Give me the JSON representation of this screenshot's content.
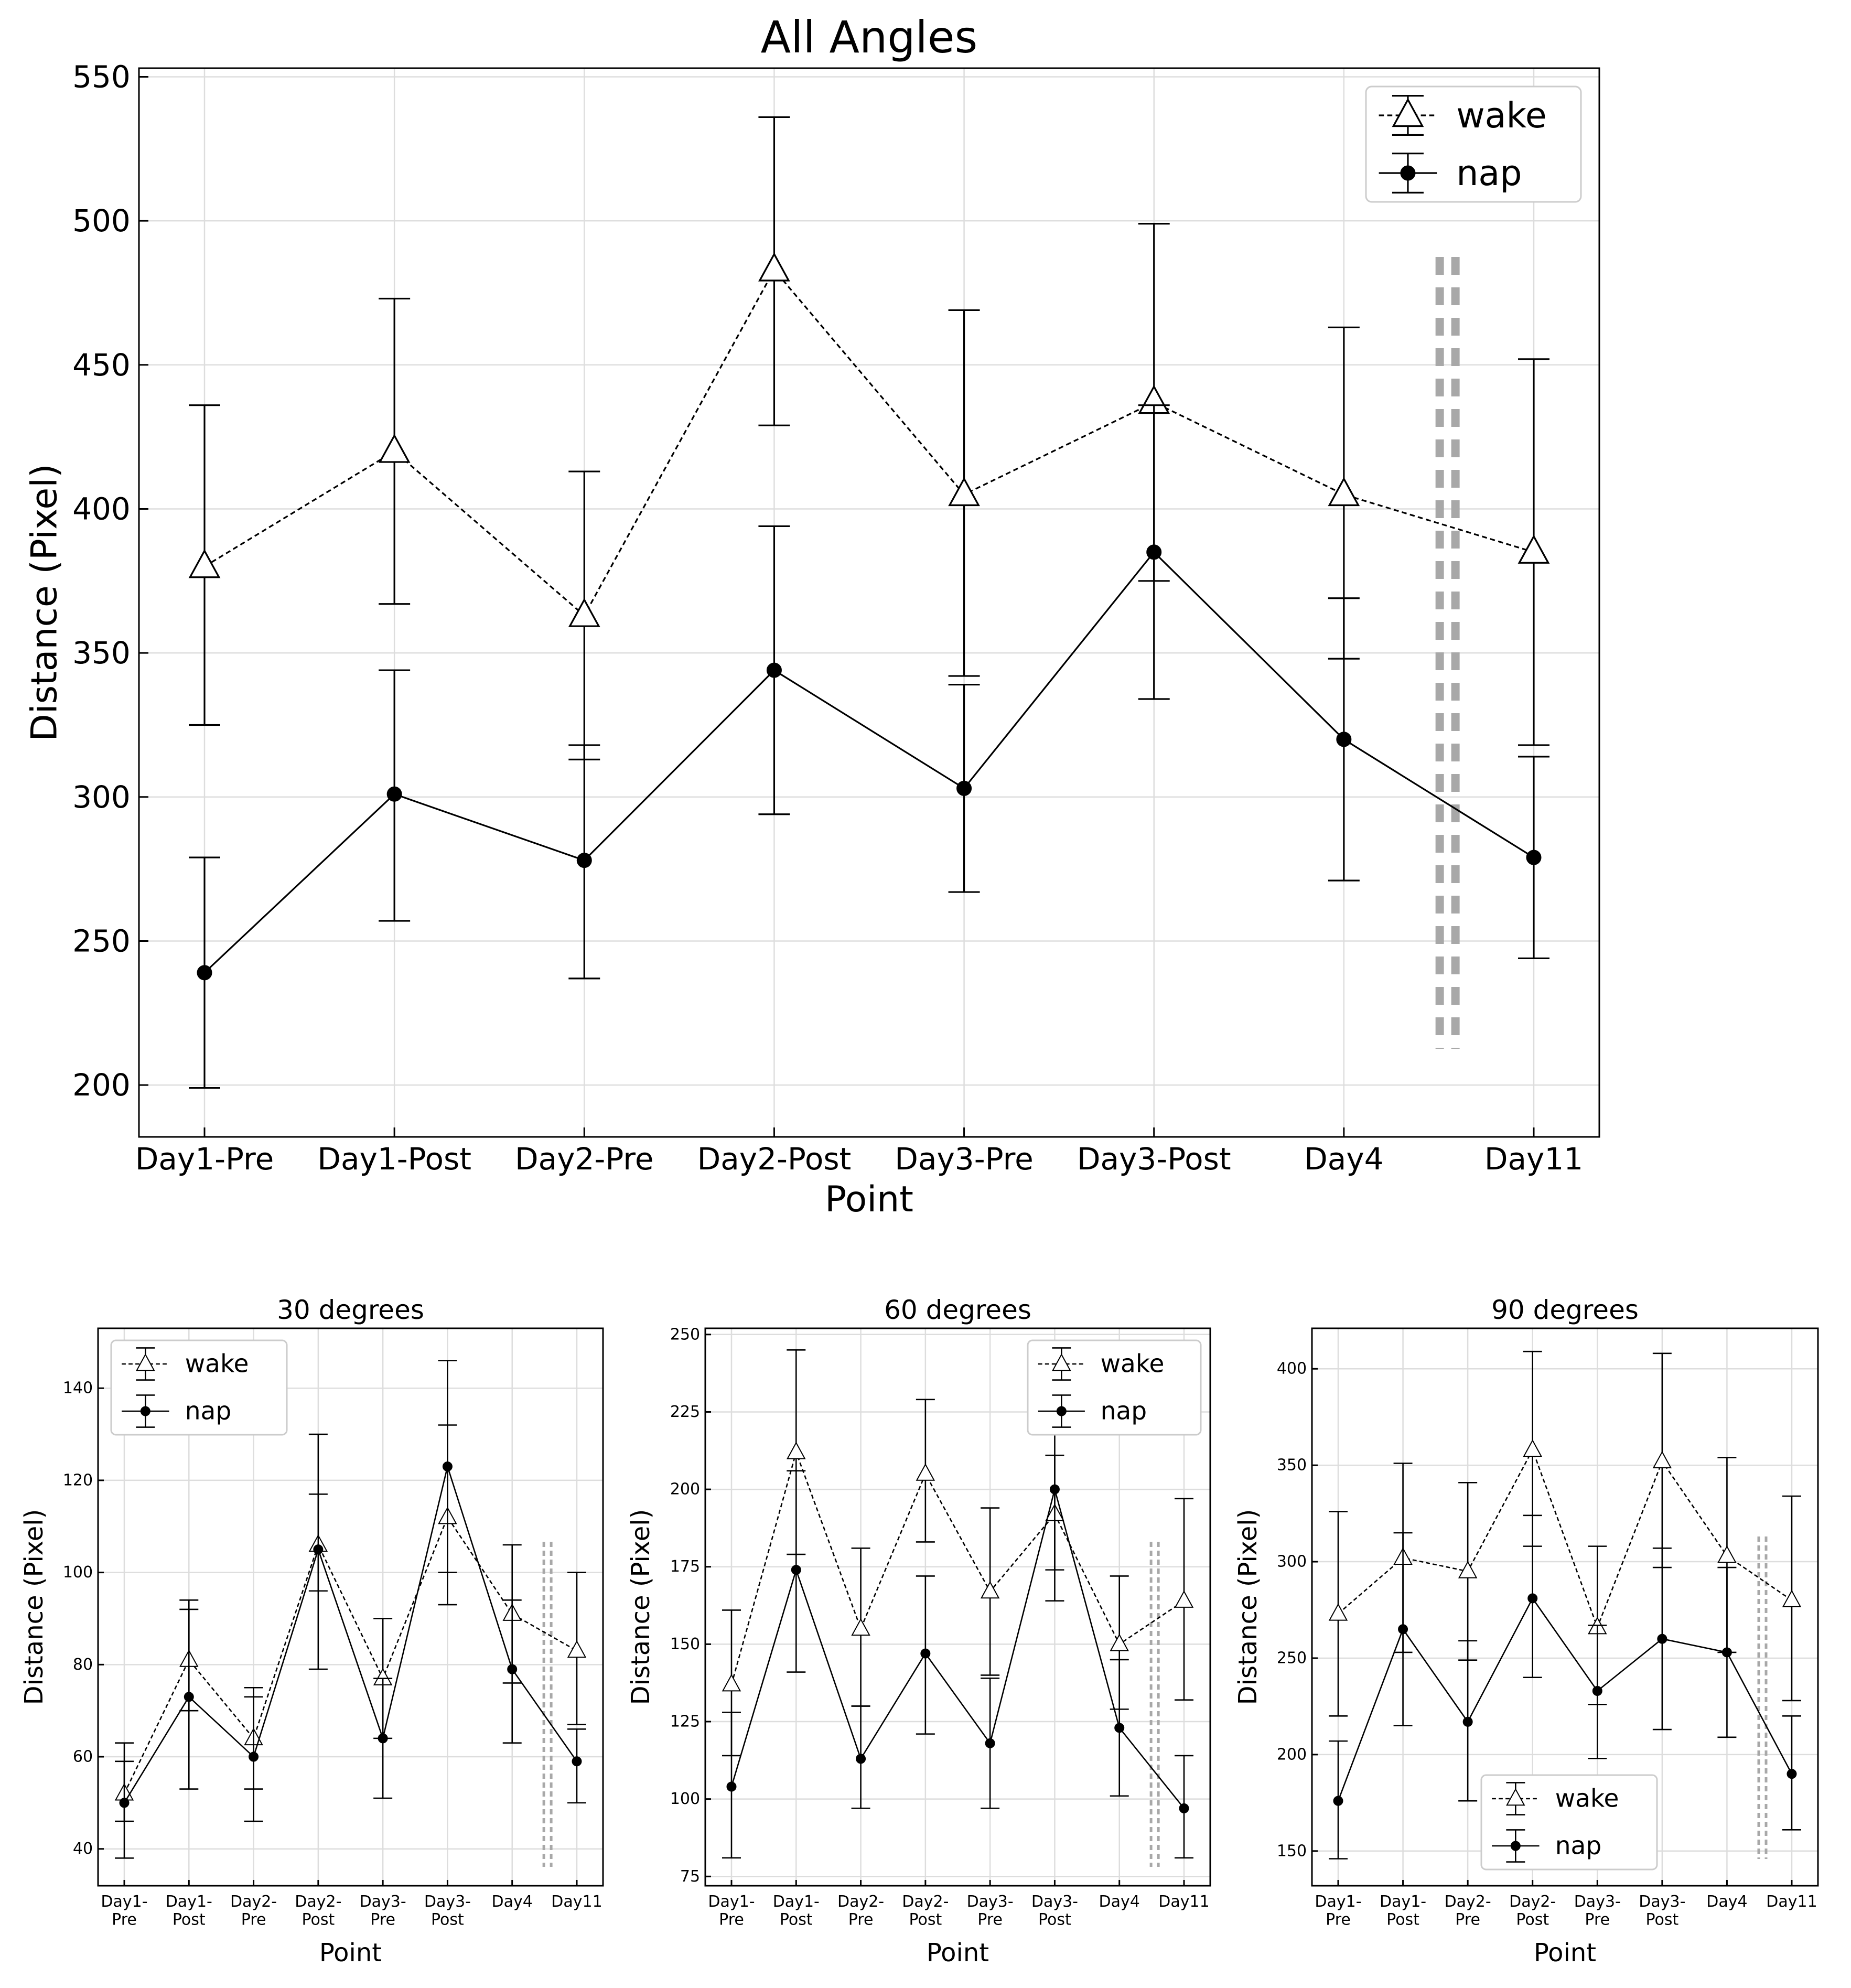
{
  "chart_data": [
    {
      "type": "line",
      "title": "All Angles",
      "xlabel": "Point",
      "ylabel": "Distance (Pixel)",
      "categories": [
        "Day1-Pre",
        "Day1-Post",
        "Day2-Pre",
        "Day2-Post",
        "Day3-Pre",
        "Day3-Post",
        "Day4",
        "Day11"
      ],
      "ylim": [
        182,
        553
      ],
      "yticks": [
        200,
        250,
        300,
        350,
        400,
        450,
        500,
        550
      ],
      "grid": true,
      "legend": "top-right",
      "break_marker": "between Day4 and Day11",
      "series": [
        {
          "name": "wake",
          "marker": "triangle",
          "line": "dashed",
          "values": [
            380,
            420,
            363,
            483,
            405,
            437,
            405,
            385
          ],
          "err_low": [
            325,
            367,
            313,
            429,
            342,
            375,
            348,
            318
          ],
          "err_high": [
            436,
            473,
            413,
            536,
            469,
            499,
            463,
            452
          ]
        },
        {
          "name": "nap",
          "marker": "circle",
          "line": "solid",
          "values": [
            239,
            301,
            278,
            344,
            303,
            385,
            320,
            279
          ],
          "err_low": [
            199,
            257,
            237,
            294,
            267,
            334,
            271,
            244
          ],
          "err_high": [
            279,
            344,
            318,
            394,
            339,
            436,
            369,
            314
          ]
        }
      ]
    },
    {
      "type": "line",
      "title": "30 degrees",
      "xlabel": "Point",
      "ylabel": "Distance (Pixel)",
      "categories": [
        "Day1-\nPre",
        "Day1-\nPost",
        "Day2-\nPre",
        "Day2-\nPost",
        "Day3-\nPre",
        "Day3-\nPost",
        "Day4",
        "Day11"
      ],
      "ylim": [
        32,
        153
      ],
      "yticks": [
        40,
        60,
        80,
        100,
        120,
        140
      ],
      "grid": true,
      "legend": "top-left",
      "break_marker": "between Day4 and Day11",
      "series": [
        {
          "name": "wake",
          "marker": "triangle",
          "line": "dashed",
          "values": [
            52,
            81,
            64,
            106,
            77,
            112,
            91,
            83
          ],
          "err_low": [
            46,
            70,
            53,
            96,
            64,
            100,
            76,
            67
          ],
          "err_high": [
            59,
            92,
            75,
            117,
            90,
            132,
            106,
            100
          ]
        },
        {
          "name": "nap",
          "marker": "circle",
          "line": "solid",
          "values": [
            50,
            73,
            60,
            105,
            64,
            123,
            79,
            59
          ],
          "err_low": [
            38,
            53,
            46,
            79,
            51,
            93,
            63,
            50
          ],
          "err_high": [
            63,
            94,
            73,
            130,
            77,
            146,
            94,
            66
          ]
        }
      ]
    },
    {
      "type": "line",
      "title": "60 degrees",
      "xlabel": "Point",
      "ylabel": "Distance (Pixel)",
      "categories": [
        "Day1-\nPre",
        "Day1-\nPost",
        "Day2-\nPre",
        "Day2-\nPost",
        "Day3-\nPre",
        "Day3-\nPost",
        "Day4",
        "Day11"
      ],
      "ylim": [
        72,
        252
      ],
      "yticks": [
        75,
        100,
        125,
        150,
        175,
        200,
        225,
        250
      ],
      "grid": true,
      "legend": "top-right",
      "break_marker": "between Day4 and Day11",
      "series": [
        {
          "name": "wake",
          "marker": "triangle",
          "line": "dashed",
          "values": [
            137,
            212,
            155,
            205,
            167,
            192,
            150,
            164
          ],
          "err_low": [
            114,
            179,
            130,
            183,
            140,
            174,
            129,
            132
          ],
          "err_high": [
            161,
            245,
            181,
            229,
            194,
            211,
            172,
            197
          ]
        },
        {
          "name": "nap",
          "marker": "circle",
          "line": "solid",
          "values": [
            104,
            174,
            113,
            147,
            118,
            200,
            123,
            97
          ],
          "err_low": [
            81,
            141,
            97,
            121,
            97,
            164,
            101,
            81
          ],
          "err_high": [
            128,
            206,
            130,
            172,
            139,
            219,
            145,
            114
          ]
        }
      ]
    },
    {
      "type": "line",
      "title": "90 degrees",
      "xlabel": "Point",
      "ylabel": "Distance (Pixel)",
      "categories": [
        "Day1-\nPre",
        "Day1-\nPost",
        "Day2-\nPre",
        "Day2-\nPost",
        "Day3-\nPre",
        "Day3-\nPost",
        "Day4",
        "Day11"
      ],
      "ylim": [
        132,
        421
      ],
      "yticks": [
        150,
        200,
        250,
        300,
        350,
        400
      ],
      "grid": true,
      "legend": "bottom-center",
      "break_marker": "between Day4 and Day11",
      "series": [
        {
          "name": "wake",
          "marker": "triangle",
          "line": "dashed",
          "values": [
            273,
            302,
            295,
            358,
            266,
            352,
            303,
            280
          ],
          "err_low": [
            220,
            253,
            249,
            308,
            226,
            297,
            253,
            228
          ],
          "err_high": [
            326,
            351,
            341,
            409,
            308,
            408,
            354,
            334
          ]
        },
        {
          "name": "nap",
          "marker": "circle",
          "line": "solid",
          "values": [
            176,
            265,
            217,
            281,
            233,
            260,
            253,
            190
          ],
          "err_low": [
            146,
            215,
            176,
            240,
            198,
            213,
            209,
            161
          ],
          "err_high": [
            207,
            315,
            259,
            324,
            267,
            307,
            297,
            220
          ]
        }
      ]
    }
  ]
}
